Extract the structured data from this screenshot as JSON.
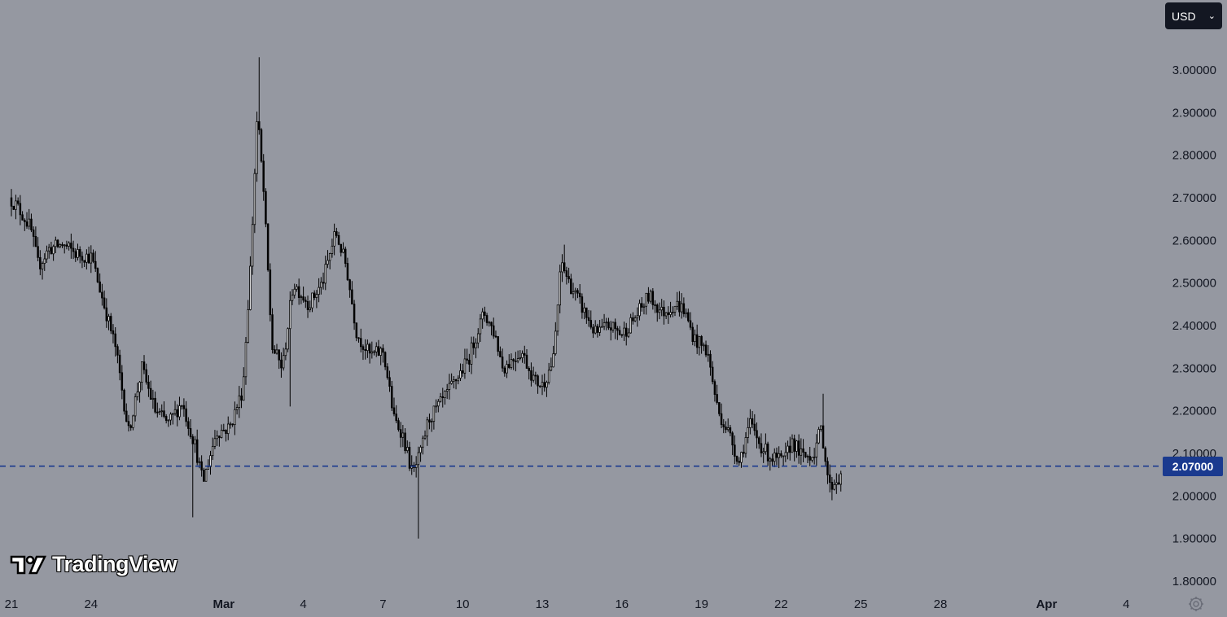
{
  "toolbar": {
    "currency_label": "USD",
    "currency_icon": "chevron-down-icon"
  },
  "branding": {
    "logo_text": "TradingView",
    "logo_icon": "tradingview-logo-icon"
  },
  "price_line": {
    "value": 2.07,
    "label": "2.07000",
    "color": "#1a3a8f"
  },
  "colors": {
    "background": "#9598a1",
    "up_fill": "#ffffff",
    "down_fill": "#000000",
    "wick": "#000000",
    "axis_text": "#131722"
  },
  "chart_data": {
    "type": "candlestick",
    "title": "",
    "xlabel": "",
    "ylabel": "",
    "ylim": [
      1.76,
      3.13
    ],
    "y_ticks": [
      "1.80000",
      "1.90000",
      "2.00000",
      "2.10000",
      "2.20000",
      "2.30000",
      "2.40000",
      "2.50000",
      "2.60000",
      "2.70000",
      "2.80000",
      "2.90000",
      "3.00000"
    ],
    "y_tick_values": [
      1.8,
      1.9,
      2.0,
      2.1,
      2.2,
      2.3,
      2.4,
      2.5,
      2.6,
      2.7,
      2.8,
      2.9,
      3.0
    ],
    "x_ticks": [
      "21",
      "24",
      "Mar",
      "4",
      "7",
      "10",
      "13",
      "16",
      "19",
      "22",
      "25",
      "28",
      "Apr",
      "4"
    ],
    "x_tick_days": [
      0,
      3,
      8,
      11,
      14,
      17,
      20,
      23,
      26,
      29,
      32,
      35,
      39,
      42
    ],
    "bold_x_ticks": [
      "Mar",
      "Apr"
    ],
    "candles_per_day": 12,
    "grid": false,
    "anchors": [
      [
        0.0,
        2.7
      ],
      [
        0.3,
        2.68
      ],
      [
        0.8,
        2.63
      ],
      [
        1.1,
        2.54
      ],
      [
        1.5,
        2.58
      ],
      [
        2.0,
        2.59
      ],
      [
        2.5,
        2.57
      ],
      [
        3.1,
        2.56
      ],
      [
        3.4,
        2.49
      ],
      [
        4.0,
        2.35
      ],
      [
        4.5,
        2.15
      ],
      [
        5.0,
        2.3
      ],
      [
        5.5,
        2.2
      ],
      [
        6.0,
        2.17
      ],
      [
        6.5,
        2.22
      ],
      [
        7.0,
        2.12
      ],
      [
        7.3,
        2.03
      ],
      [
        7.8,
        2.15
      ],
      [
        8.3,
        2.16
      ],
      [
        8.8,
        2.25
      ],
      [
        9.1,
        2.55
      ],
      [
        9.35,
        2.9
      ],
      [
        9.6,
        2.7
      ],
      [
        9.9,
        2.35
      ],
      [
        10.3,
        2.3
      ],
      [
        10.7,
        2.5
      ],
      [
        11.3,
        2.45
      ],
      [
        11.8,
        2.5
      ],
      [
        12.3,
        2.62
      ],
      [
        12.7,
        2.54
      ],
      [
        13.1,
        2.38
      ],
      [
        13.6,
        2.33
      ],
      [
        14.1,
        2.34
      ],
      [
        14.5,
        2.18
      ],
      [
        14.8,
        2.15
      ],
      [
        15.2,
        2.05
      ],
      [
        15.5,
        2.1
      ],
      [
        15.8,
        2.18
      ],
      [
        16.3,
        2.22
      ],
      [
        16.8,
        2.27
      ],
      [
        17.3,
        2.32
      ],
      [
        17.6,
        2.38
      ],
      [
        17.9,
        2.43
      ],
      [
        18.3,
        2.38
      ],
      [
        18.6,
        2.3
      ],
      [
        19.3,
        2.34
      ],
      [
        19.8,
        2.27
      ],
      [
        20.1,
        2.26
      ],
      [
        20.5,
        2.32
      ],
      [
        20.8,
        2.55
      ],
      [
        21.1,
        2.5
      ],
      [
        21.6,
        2.44
      ],
      [
        22.1,
        2.38
      ],
      [
        22.6,
        2.4
      ],
      [
        23.1,
        2.38
      ],
      [
        23.6,
        2.42
      ],
      [
        24.1,
        2.47
      ],
      [
        24.6,
        2.43
      ],
      [
        25.1,
        2.45
      ],
      [
        25.4,
        2.44
      ],
      [
        25.8,
        2.37
      ],
      [
        26.3,
        2.34
      ],
      [
        26.7,
        2.2
      ],
      [
        27.1,
        2.15
      ],
      [
        27.5,
        2.08
      ],
      [
        27.9,
        2.17
      ],
      [
        28.3,
        2.12
      ],
      [
        28.7,
        2.09
      ],
      [
        29.2,
        2.08
      ],
      [
        29.5,
        2.13
      ],
      [
        29.9,
        2.09
      ],
      [
        30.3,
        2.1
      ],
      [
        30.6,
        2.16
      ],
      [
        30.9,
        2.02
      ],
      [
        31.2,
        2.04
      ],
      [
        31.3,
        2.04
      ]
    ],
    "spikes": [
      {
        "day": 9.3,
        "high": 3.03
      },
      {
        "day": 10.5,
        "low": 2.21
      },
      {
        "day": 15.3,
        "low": 1.9
      },
      {
        "day": 20.8,
        "high": 2.59
      },
      {
        "day": 30.6,
        "high": 2.24
      },
      {
        "day": 30.9,
        "low": 1.99
      },
      {
        "day": 6.8,
        "low": 1.95
      }
    ]
  }
}
